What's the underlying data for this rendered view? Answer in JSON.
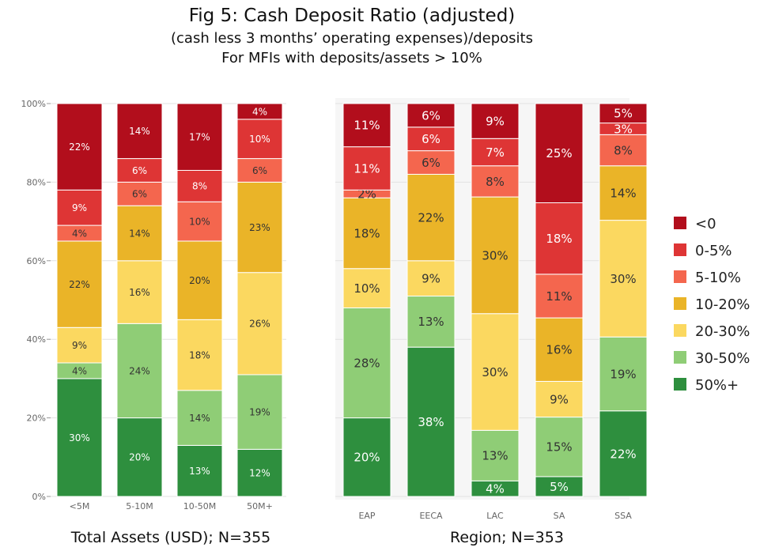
{
  "header": {
    "title": "Fig 5: Cash Deposit Ratio (adjusted)",
    "subtitle1": "(cash less 3 months’ operating expenses)/deposits",
    "subtitle2": "For MFIs with deposits/assets > 10%"
  },
  "chart_data": {
    "type": "bar",
    "stacked": true,
    "normalized": true,
    "title": "Fig 5: Cash Deposit Ratio (adjusted)",
    "ylim": [
      0,
      100
    ],
    "y_ticks": [
      "0%",
      "20%",
      "40%",
      "60%",
      "80%",
      "100%"
    ],
    "grid": true,
    "legend_position": "right",
    "legend": [
      {
        "name": "<0",
        "color": "#b20e1c"
      },
      {
        "name": "0-5%",
        "color": "#de3535"
      },
      {
        "name": "5-10%",
        "color": "#f4664e"
      },
      {
        "name": "10-20%",
        "color": "#eab428"
      },
      {
        "name": "20-30%",
        "color": "#fbd860"
      },
      {
        "name": "30-50%",
        "color": "#8fcd76"
      },
      {
        "name": "50%+",
        "color": "#2e8f3e"
      }
    ],
    "groups": [
      {
        "label": "Total Assets (USD); N=355",
        "categories": [
          "<5M",
          "5-10M",
          "10-50M",
          "50M+"
        ],
        "series": [
          {
            "name": "50%+",
            "values": [
              30,
              20,
              13,
              12
            ]
          },
          {
            "name": "30-50%",
            "values": [
              4,
              24,
              14,
              19
            ]
          },
          {
            "name": "20-30%",
            "values": [
              9,
              16,
              18,
              26
            ]
          },
          {
            "name": "10-20%",
            "values": [
              22,
              14,
              20,
              23
            ]
          },
          {
            "name": "5-10%",
            "values": [
              4,
              6,
              10,
              6
            ]
          },
          {
            "name": "0-5%",
            "values": [
              9,
              6,
              8,
              10
            ]
          },
          {
            "name": "<0",
            "values": [
              22,
              14,
              17,
              4
            ]
          }
        ]
      },
      {
        "label": "Region; N=353",
        "categories": [
          "EAP",
          "EECA",
          "LAC",
          "SA",
          "SSA"
        ],
        "series": [
          {
            "name": "50%+",
            "values": [
              20,
              38,
              4,
              5,
              22
            ]
          },
          {
            "name": "30-50%",
            "values": [
              28,
              13,
              13,
              15,
              19
            ]
          },
          {
            "name": "20-30%",
            "values": [
              10,
              9,
              30,
              9,
              30
            ]
          },
          {
            "name": "10-20%",
            "values": [
              18,
              22,
              30,
              16,
              14
            ]
          },
          {
            "name": "5-10%",
            "values": [
              2,
              6,
              8,
              11,
              8
            ]
          },
          {
            "name": "0-5%",
            "values": [
              11,
              6,
              7,
              18,
              3
            ]
          },
          {
            "name": "<0",
            "values": [
              11,
              6,
              9,
              25,
              5
            ]
          }
        ]
      }
    ]
  }
}
